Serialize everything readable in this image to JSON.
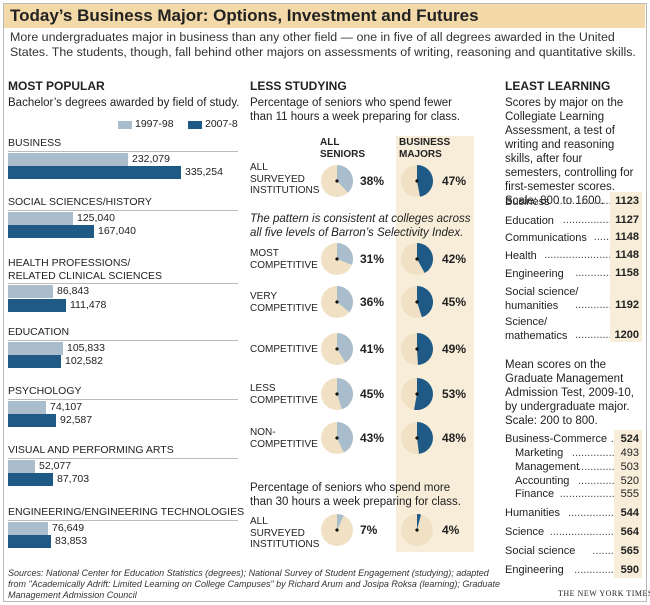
{
  "title": "Today’s Business Major: Options, Investment and Futures",
  "intro": "More undergraduates major in business than any other field — one in five of all degrees awarded in the United States. The students, though, fall behind other majors on assessments of writing, reasoning and quantitative skills.",
  "colors": {
    "light_bar": "#a9bdcc",
    "dark_bar": "#1f5a87",
    "shade": "#f7edd9",
    "pie_bg": "#f0e1c5"
  },
  "chart_data": [
    {
      "type": "bar",
      "title": "MOST POPULAR",
      "subtitle": "Bachelor’s degrees awarded by field of study.",
      "categories": [
        "BUSINESS",
        "SOCIAL SCIENCES/HISTORY",
        "HEALTH PROFESSIONS/ RELATED CLINICAL SCIENCES",
        "EDUCATION",
        "PSYCHOLOGY",
        "VISUAL AND PERFORMING ARTS",
        "ENGINEERING/ENGINEERING TECHNOLOGIES"
      ],
      "series": [
        {
          "name": "1997-98",
          "color": "#a9bdcc",
          "values": [
            232079,
            125040,
            86843,
            105833,
            74107,
            52077,
            76649
          ],
          "labels": [
            "232,079",
            "125,040",
            "86,843",
            "105,833",
            "74,107",
            "52,077",
            "76,649"
          ]
        },
        {
          "name": "2007-8",
          "color": "#1f5a87",
          "values": [
            335254,
            167040,
            111478,
            102582,
            92587,
            87703,
            83853
          ],
          "labels": [
            "335,254",
            "167,040",
            "111,478",
            "102,582",
            "92,587",
            "87,703",
            "83,853"
          ]
        }
      ]
    },
    {
      "type": "pie",
      "title": "LESS STUDYING",
      "subtitle": "Percentage of seniors who spend fewer than 11 hours a week preparing for class.",
      "col_heads": [
        "ALL SENIORS",
        "BUSINESS MAJORS"
      ],
      "note": "The pattern is consistent at colleges across all five levels of Barron’s Selectivity Index.",
      "rows": [
        {
          "label": "ALL SURVEYED INSTITUTIONS",
          "all": 38,
          "business": 47,
          "all_label": "38%",
          "business_label": "47%"
        },
        {
          "label": "MOST COMPETITIVE",
          "all": 31,
          "business": 42,
          "all_label": "31%",
          "business_label": "42%"
        },
        {
          "label": "VERY COMPETITIVE",
          "all": 36,
          "business": 45,
          "all_label": "36%",
          "business_label": "45%"
        },
        {
          "label": "COMPETITIVE",
          "all": 41,
          "business": 49,
          "all_label": "41%",
          "business_label": "49%"
        },
        {
          "label": "LESS COMPETITIVE",
          "all": 45,
          "business": 53,
          "all_label": "45%",
          "business_label": "53%"
        },
        {
          "label": "NON- COMPETITIVE",
          "all": 43,
          "business": 48,
          "all_label": "43%",
          "business_label": "48%"
        }
      ],
      "subtitle2": "Percentage of seniors who spend more than 30 hours a week preparing for class.",
      "row2": {
        "label": "ALL SURVEYED INSTITUTIONS",
        "all": 7,
        "business": 4,
        "all_label": "7%",
        "business_label": "4%"
      }
    },
    {
      "type": "table",
      "title": "LEAST LEARNING",
      "subtitle": "Scores by major on the Collegiate Learning Assessment, a test of writing and reasoning skills, after four semesters, controlling for first-semester scores. Scale: 800 to 1600.",
      "rows": [
        {
          "major": "Business",
          "score": 1123
        },
        {
          "major": "Education",
          "score": 1127
        },
        {
          "major": "Communications",
          "score": 1148
        },
        {
          "major": "Health",
          "score": 1148
        },
        {
          "major": "Engineering",
          "score": 1158
        },
        {
          "major": "Social science/ humanities",
          "score": 1192
        },
        {
          "major": "Science/ mathematics",
          "score": 1200
        }
      ]
    },
    {
      "type": "table",
      "subtitle": "Mean scores on the Graduate Management Admission Test, 2009-10, by undergraduate major. Scale: 200 to 800.",
      "rows": [
        {
          "major": "Business-Commerce",
          "score": 524,
          "indent": false
        },
        {
          "major": "Marketing",
          "score": 493,
          "indent": true
        },
        {
          "major": "Management",
          "score": 503,
          "indent": true
        },
        {
          "major": "Accounting",
          "score": 520,
          "indent": true
        },
        {
          "major": "Finance",
          "score": 555,
          "indent": true
        },
        {
          "major": "Humanities",
          "score": 544,
          "indent": false
        },
        {
          "major": "Science",
          "score": 564,
          "indent": false
        },
        {
          "major": "Social science",
          "score": 565,
          "indent": false
        },
        {
          "major": "Engineering",
          "score": 590,
          "indent": false
        }
      ]
    }
  ],
  "sources": "Sources: National Center for Education Statistics (degrees); National Survey of Student Engagement (studying); adapted from \"Academically Adrift: Limited Learning on College Campuses\" by Richard Arum and Josipa Roksa (learning); Graduate Management Admission Council",
  "credit": "THE NEW YORK TIMES"
}
